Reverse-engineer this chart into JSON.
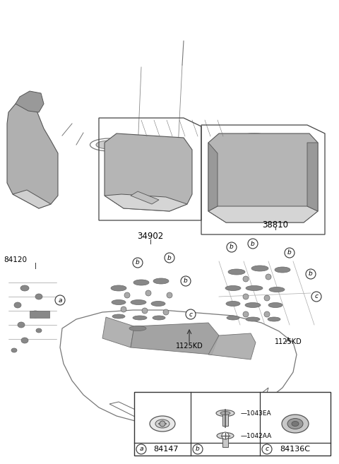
{
  "bg_color": "#ffffff",
  "part_numbers": {
    "main_top": "38810",
    "main_left": "34902",
    "side_part": "84120",
    "fastener_left": "1125KD",
    "fastener_right": "1125KD",
    "legend_a_num": "84147",
    "legend_b1": "1043EA",
    "legend_b2": "1042AA",
    "legend_c_num": "84136C"
  },
  "colors": {
    "part_fill": "#b8b8b8",
    "part_edge": "#555555",
    "line_color": "#333333",
    "text_color": "#000000",
    "car_line": "#555555",
    "slot_fill": "#888888",
    "part_dark": "#888888",
    "part_light": "#d0d0d0"
  }
}
